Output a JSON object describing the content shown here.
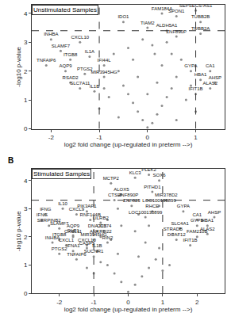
{
  "chart_data": [
    {
      "type": "scatter",
      "label": "A",
      "title": "Unstimulated Samples",
      "x_label": "log2 fold change (up-regulated in preterm -->)",
      "y_label": "-log10 p-value",
      "xlim": [
        -2.4,
        1.6
      ],
      "ylim": [
        0,
        4.3
      ],
      "xticks": [
        -2,
        -1,
        0,
        1
      ],
      "yticks": [
        0,
        1,
        2,
        3,
        4
      ],
      "color": "#8c8c8c",
      "hline": 3.4,
      "vlines": [
        -1,
        1
      ],
      "x": [
        1.0,
        0.3,
        0.6,
        -0.5,
        0.0,
        0.4,
        0.6,
        1.1,
        1.1,
        -2.0,
        -1.4,
        -1.8,
        -1.6,
        -2.1,
        -1.2,
        -0.9,
        -1.7,
        -1.3,
        -0.9,
        -1.6,
        -1.4,
        -1.1,
        0.9,
        1.3,
        1.1,
        1.4,
        1.3,
        1.0,
        0.0,
        0.1,
        -0.1,
        0.2,
        -0.2,
        0.3,
        -0.3,
        0.4,
        -0.4,
        0.5,
        -0.5,
        0.2,
        -0.2,
        0.6,
        -0.6,
        0.3,
        -0.3,
        0.5,
        -0.4,
        0.7,
        0.1,
        0.8,
        -0.8,
        1.0,
        -1.0,
        0.6,
        -0.6,
        0.9,
        -0.9,
        0.0,
        0.15,
        -0.7,
        0.4,
        -0.1
      ],
      "y": [
        4.1,
        4.0,
        3.9,
        3.7,
        3.5,
        3.4,
        3.2,
        3.7,
        3.3,
        3.1,
        3.0,
        2.7,
        2.4,
        2.2,
        2.5,
        2.2,
        2.0,
        1.9,
        1.8,
        1.6,
        1.4,
        1.3,
        2.0,
        2.0,
        1.7,
        1.6,
        1.4,
        1.2,
        0.05,
        0.2,
        0.3,
        0.5,
        0.6,
        0.8,
        0.9,
        1.1,
        1.2,
        1.4,
        1.5,
        1.6,
        1.8,
        1.8,
        2.0,
        2.2,
        2.4,
        2.6,
        2.8,
        2.4,
        2.9,
        1.0,
        1.1,
        0.6,
        0.7,
        0.3,
        0.4,
        1.5,
        1.4,
        1.2,
        2.6,
        2.6,
        3.0,
        3.1
      ],
      "point_labels": [
        "SEPSECS-AS1",
        "FAM184A",
        "SPON1",
        "IDO1",
        "TIAM2",
        "ALDH5A1",
        "ZNF890P",
        "TUBB2B",
        "TUBB2A",
        "INHBA",
        "CXCL10",
        "SLAMF7",
        "ITGB8",
        "TNFAIP6",
        "IL1A",
        "IFI44L",
        "AQP9",
        "PTGS2",
        "MIR3945HG",
        "RSAD2",
        "SLC7A11",
        "IL1B",
        "GYPA",
        "CA1",
        "HBA1",
        "AHSP",
        "ALAS2",
        "IFIT1B",
        null,
        null,
        null,
        null,
        null,
        null,
        null,
        null,
        null,
        null,
        null,
        null,
        null,
        null,
        null,
        null,
        null,
        null,
        null,
        null,
        null,
        null,
        null,
        null,
        null,
        null,
        null,
        null,
        null,
        null,
        null,
        null,
        null,
        null
      ]
    },
    {
      "type": "scatter",
      "label": "B",
      "title": "Stimulated Samples",
      "x_label": "log2 fold change (up-regulated in preterm -->)",
      "y_label": "-log10 p-value",
      "xlim": [
        -2.8,
        2.8
      ],
      "ylim": [
        0,
        4.4
      ],
      "xticks": [
        -2,
        -1,
        0,
        1,
        2
      ],
      "yticks": [
        0,
        1,
        2,
        3,
        4
      ],
      "color": "#8c8c8c",
      "hline": 3.3,
      "vlines": [
        -1,
        1
      ],
      "x": [
        0.2,
        0.6,
        0.9,
        -0.5,
        0.7,
        -0.2,
        -0.4,
        0.0,
        1.1,
        0.9,
        0.1,
        0.7,
        0.5,
        -1.9,
        -1.2,
        -2.4,
        -1.5,
        -2.5,
        -1.1,
        -0.8,
        -2.3,
        -0.7,
        -2.0,
        -1.6,
        -0.9,
        -0.8,
        -1.6,
        -1.6,
        -1.0,
        -0.6,
        -2.0,
        -1.2,
        -0.9,
        -1.2,
        -2.2,
        -1.8,
        -1.6,
        -1.0,
        -2.0,
        -1.5,
        1.6,
        2.0,
        2.0,
        2.5,
        2.3,
        2.3,
        2.0,
        1.5,
        1.3,
        1.4,
        1.8,
        0.0,
        0.2,
        -0.2,
        0.4,
        -0.4,
        0.6,
        -0.6,
        0.3,
        -0.3,
        0.8,
        -0.8,
        0.5,
        -0.5,
        1.0,
        -1.0,
        0.2,
        -0.2,
        1.2,
        -1.2,
        0.6,
        -0.6,
        0.3,
        -0.3,
        0.9,
        -0.9
      ],
      "y": [
        4.1,
        4.2,
        4.0,
        3.9,
        3.6,
        3.5,
        3.3,
        3.3,
        3.3,
        3.1,
        3.1,
        2.9,
        2.7,
        3.0,
        2.9,
        2.8,
        2.8,
        2.6,
        2.6,
        2.5,
        2.4,
        2.2,
        2.3,
        2.2,
        2.2,
        2.0,
        2.0,
        2.05,
        1.9,
        1.8,
        1.9,
        1.7,
        1.5,
        1.6,
        1.8,
        1.7,
        1.5,
        1.3,
        1.4,
        1.2,
        2.9,
        2.6,
        2.4,
        2.7,
        2.4,
        2.1,
        2.0,
        2.3,
        2.1,
        1.9,
        1.7,
        0.05,
        0.3,
        0.4,
        0.6,
        0.7,
        0.9,
        1.0,
        1.3,
        1.4,
        1.2,
        1.1,
        1.8,
        1.9,
        0.8,
        0.7,
        2.2,
        2.4,
        1.0,
        0.9,
        2.4,
        2.6,
        2.8,
        3.0,
        1.6,
        1.5
      ],
      "point_labels": [
        "KLC3",
        "PLEK2",
        "SOX6",
        "MCTP2",
        "PITHD1",
        "ALOX5",
        "CTSH",
        "ZNF890P",
        "MIR378D2",
        "LOC100130899",
        "ZNF823",
        "RHCE",
        "LOC100130899",
        "IL10",
        "PIK3AP1",
        "IFNG",
        "CXCL9",
        "IFNG",
        "RNF144B",
        "LILRB2",
        "SERPINB2",
        "CD274",
        "SLAMF7",
        "AQP9",
        "DNAJC5",
        "ANKRD22",
        "CXCL11",
        "OLR1",
        "MIR3945HG",
        "RIN2",
        "ITGB8",
        "CXCL10",
        "IL1B",
        "CASP5",
        "INHBA",
        "CXCL1",
        "IFNA1",
        "SUCNR1",
        "PTGS2",
        "TNFAIP6",
        "GYPA",
        "CA1",
        "GYPB",
        "AHSP",
        "HBA1",
        "ALAS2",
        "FAM210B",
        "SLC4A1",
        "STRADB",
        "DCAF12",
        "IFIT1B",
        null,
        null,
        null,
        null,
        null,
        null,
        null,
        null,
        null,
        null,
        null,
        null,
        null,
        null,
        null,
        null,
        null,
        null,
        null,
        null,
        null,
        null,
        null,
        null
      ]
    }
  ]
}
